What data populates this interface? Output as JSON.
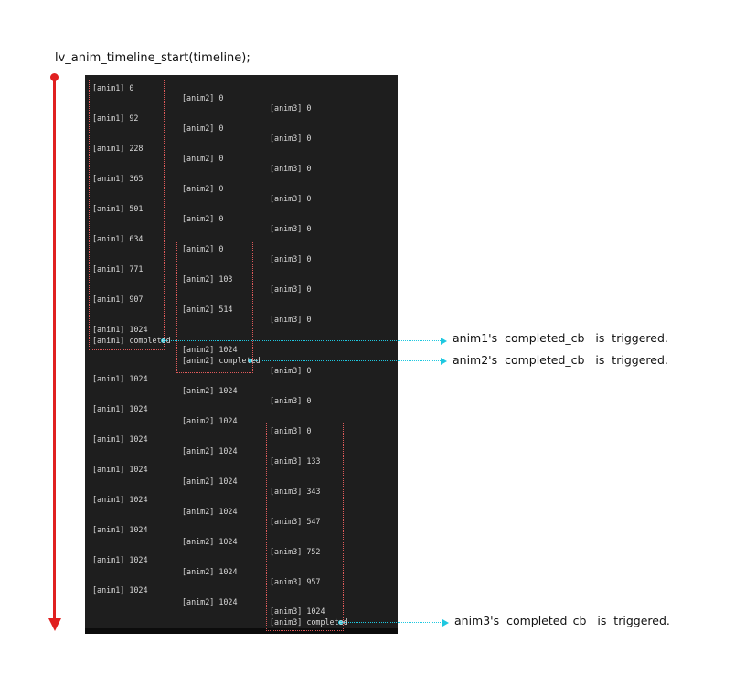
{
  "title": "lv_anim_timeline_start(timeline);",
  "colors": {
    "timeline_arrow": "#e02020",
    "callback_arrow": "#1ec8e0",
    "box": "#e05a5a",
    "terminal_bg": "#1e1e1e"
  },
  "terminal": {
    "anim1": [
      "[anim1] 0",
      "[anim1] 92",
      "[anim1] 228",
      "[anim1] 365",
      "[anim1] 501",
      "[anim1] 634",
      "[anim1] 771",
      "[anim1] 907",
      "[anim1] 1024",
      "[anim1] completed",
      "[anim1] 1024",
      "[anim1] 1024",
      "[anim1] 1024",
      "[anim1] 1024",
      "[anim1] 1024",
      "[anim1] 1024",
      "[anim1] 1024",
      "[anim1] 1024"
    ],
    "anim2": [
      "[anim2] 0",
      "[anim2] 0",
      "[anim2] 0",
      "[anim2] 0",
      "[anim2] 0",
      "[anim2] 0",
      "[anim2] 103",
      "[anim2] 514",
      "[anim2] 1024",
      "[anim2] completed",
      "[anim2] 1024",
      "[anim2] 1024",
      "[anim2] 1024",
      "[anim2] 1024",
      "[anim2] 1024",
      "[anim2] 1024",
      "[anim2] 1024",
      "[anim2] 1024"
    ],
    "anim3": [
      "[anim3] 0",
      "[anim3] 0",
      "[anim3] 0",
      "[anim3] 0",
      "[anim3] 0",
      "[anim3] 0",
      "[anim3] 0",
      "[anim3] 0",
      "[anim3] 0",
      "[anim3] 0",
      "[anim3] 0",
      "[anim3] 133",
      "[anim3] 343",
      "[anim3] 547",
      "[anim3] 752",
      "[anim3] 957",
      "[anim3] 1024",
      "[anim3] completed"
    ]
  },
  "callbacks": [
    {
      "label": "anim1's  completed_cb   is  triggered."
    },
    {
      "label": "anim2's  completed_cb   is  triggered."
    },
    {
      "label": "anim3's  completed_cb   is  triggered."
    }
  ]
}
